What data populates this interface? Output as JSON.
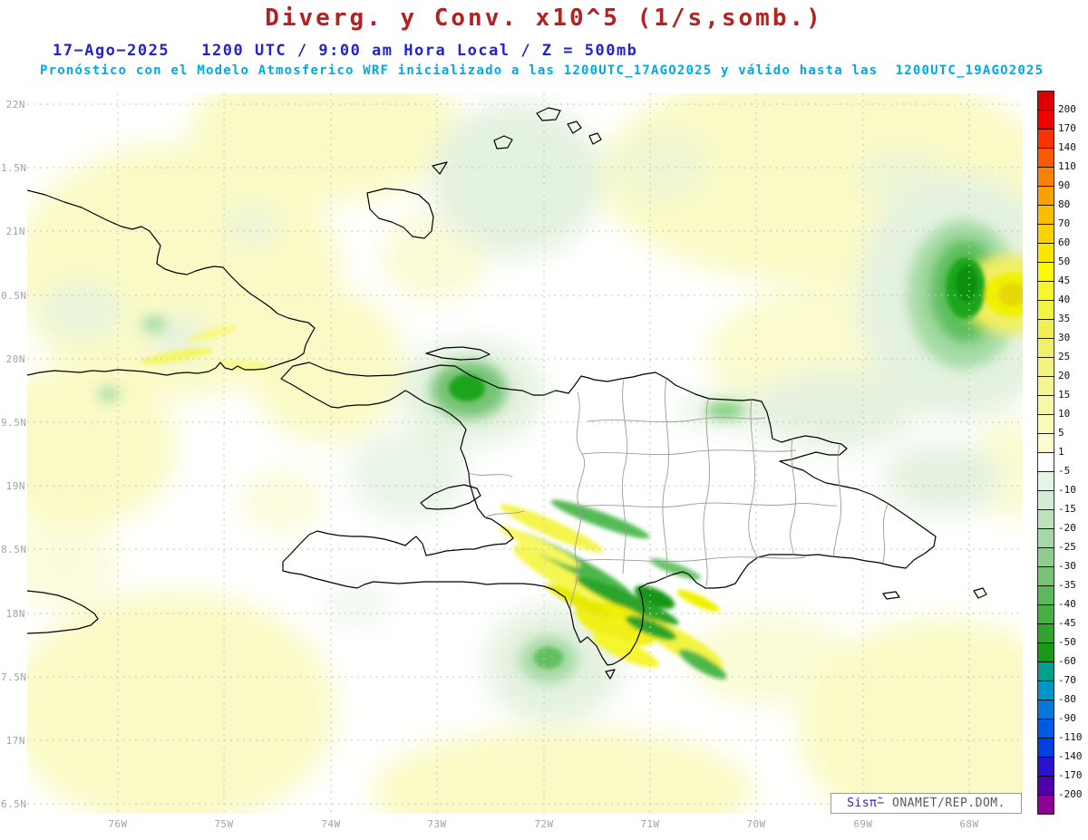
{
  "header": {
    "title": "Diverg. y Conv. x10^5 (1/s,somb.)",
    "subtitle1": "17−Ago−2025   1200 UTC / 9:00 am Hora Local / Z = 500mb",
    "subtitle2": "Pronóstico con el Modelo Atmosferico WRF inicializado a las 1200UTC_17AGO2025 y válido hasta las  1200UTC_19AGO2025",
    "title_color": "#b22222",
    "subtitle1_color": "#2323cd",
    "subtitle2_color": "#00a8e8"
  },
  "map": {
    "attribution": {
      "brand": "Sisπ̃",
      "separator": "− ",
      "org": "ONAMET/REP.DOM."
    },
    "attribution_brand_color": "#2323cd",
    "attribution_org_color": "#5a5a5a"
  },
  "chart_data": {
    "type": "heatmap",
    "title": "Diverg. y Conv. x10^5 (1/s,somb.)",
    "level": "Z = 500mb",
    "valid": "17-Ago-2025 1200 UTC / 9:00 am Hora Local",
    "model_run": "1200UTC_17AGO2025",
    "valid_until": "1200UTC_19AGO2025",
    "x_ticks": [
      "76W",
      "75W",
      "74W",
      "73W",
      "72W",
      "71W",
      "70W",
      "69W",
      "68W"
    ],
    "y_ticks": [
      "22N",
      "1.5N",
      "21N",
      "0.5N",
      "20N",
      "9.5N",
      "19N",
      "8.5N",
      "18N",
      "7.5N",
      "17N",
      "6.5N"
    ],
    "grid": true,
    "legend_position": "right",
    "colorbar_levels": [
      200,
      170,
      140,
      110,
      90,
      80,
      70,
      60,
      50,
      45,
      40,
      35,
      30,
      25,
      20,
      15,
      10,
      5,
      1,
      -5,
      -10,
      -15,
      -20,
      -25,
      -30,
      -35,
      -40,
      -45,
      -50,
      -60,
      -70,
      -80,
      -90,
      -110,
      -140,
      -170,
      -200
    ],
    "colorbar_colors": [
      "#dc0000",
      "#f00000",
      "#fa3200",
      "#fa5a00",
      "#fa8200",
      "#faa000",
      "#fabe00",
      "#fad200",
      "#fae600",
      "#fafa00",
      "#f6f62d",
      "#f3f341",
      "#f0f055",
      "#f1f169",
      "#f3f37d",
      "#f5f591",
      "#f7f7a5",
      "#f9f9b9",
      "#fbfbcd",
      "#ffffff",
      "#e6f4e6",
      "#d3ecd3",
      "#bce2bc",
      "#a4d8a4",
      "#8dce8d",
      "#75c375",
      "#5eb95e",
      "#46af46",
      "#2fa52f",
      "#179b17",
      "#00a08c",
      "#0096c8",
      "#0078dc",
      "#005ae6",
      "#0040e0",
      "#2814cc",
      "#5000aa",
      "#8c0096"
    ]
  }
}
